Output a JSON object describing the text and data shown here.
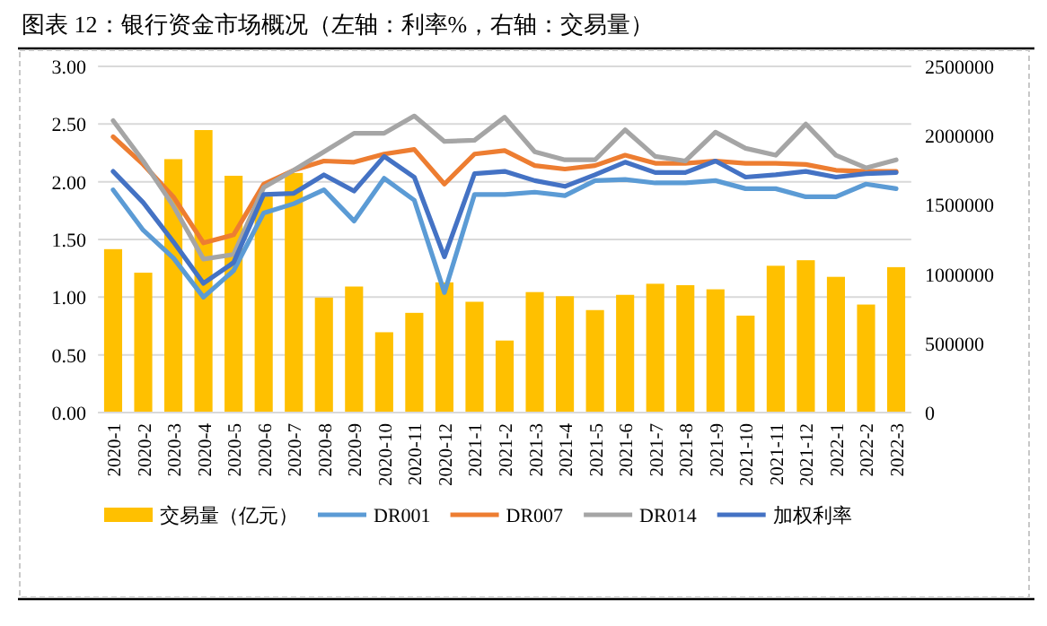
{
  "chart_data": {
    "type": "line",
    "title": "图表 12：银行资金市场概况（左轴：利率%，右轴：交易量）",
    "categories": [
      "2020-1",
      "2020-2",
      "2020-3",
      "2020-4",
      "2020-5",
      "2020-6",
      "2020-7",
      "2020-8",
      "2020-9",
      "2020-10",
      "2020-11",
      "2020-12",
      "2021-1",
      "2021-2",
      "2021-3",
      "2021-4",
      "2021-5",
      "2021-6",
      "2021-7",
      "2021-8",
      "2021-9",
      "2021-10",
      "2021-11",
      "2021-12",
      "2022-1",
      "2022-2",
      "2022-3"
    ],
    "series": [
      {
        "name": "交易量（亿元）",
        "type": "bar",
        "axis": "y2",
        "color": "#ffc000",
        "values": [
          1180000,
          1010000,
          1830000,
          2040000,
          1710000,
          1560000,
          1730000,
          830000,
          910000,
          580000,
          720000,
          940000,
          800000,
          520000,
          870000,
          840000,
          740000,
          850000,
          930000,
          920000,
          890000,
          700000,
          1060000,
          1100000,
          980000,
          780000,
          1050000
        ]
      },
      {
        "name": "DR001",
        "color": "#5b9bd5",
        "values": [
          1.93,
          1.58,
          1.34,
          1.0,
          1.23,
          1.73,
          1.81,
          1.93,
          1.66,
          2.03,
          1.84,
          1.04,
          1.89,
          1.89,
          1.91,
          1.88,
          2.01,
          2.02,
          1.99,
          1.99,
          2.01,
          1.94,
          1.94,
          1.87,
          1.87,
          1.98,
          1.94
        ]
      },
      {
        "name": "DR007",
        "color": "#ed7d31",
        "values": [
          2.39,
          2.15,
          1.87,
          1.47,
          1.54,
          1.98,
          2.1,
          2.18,
          2.17,
          2.24,
          2.28,
          1.98,
          2.24,
          2.27,
          2.14,
          2.11,
          2.14,
          2.23,
          2.16,
          2.16,
          2.18,
          2.16,
          2.16,
          2.15,
          2.1,
          2.09,
          2.09
        ]
      },
      {
        "name": "DR014",
        "color": "#a5a5a5",
        "values": [
          2.53,
          2.18,
          1.79,
          1.33,
          1.37,
          1.95,
          2.1,
          2.26,
          2.42,
          2.42,
          2.57,
          2.35,
          2.36,
          2.56,
          2.26,
          2.19,
          2.19,
          2.45,
          2.22,
          2.18,
          2.43,
          2.29,
          2.23,
          2.5,
          2.23,
          2.12,
          2.19
        ]
      },
      {
        "name": "加权利率",
        "color": "#4472c4",
        "values": [
          2.09,
          1.82,
          1.48,
          1.12,
          1.3,
          1.89,
          1.9,
          2.06,
          1.92,
          2.22,
          2.04,
          1.35,
          2.07,
          2.09,
          2.01,
          1.96,
          2.06,
          2.17,
          2.08,
          2.08,
          2.18,
          2.04,
          2.06,
          2.09,
          2.04,
          2.07,
          2.08
        ]
      }
    ],
    "ylim": [
      0,
      3
    ],
    "yticks": [
      {
        "value": 0,
        "label": "0.00"
      },
      {
        "value": 0.5,
        "label": "0.50"
      },
      {
        "value": 1,
        "label": "1.00"
      },
      {
        "value": 1.5,
        "label": "1.50"
      },
      {
        "value": 2,
        "label": "2.00"
      },
      {
        "value": 2.5,
        "label": "2.50"
      },
      {
        "value": 3,
        "label": "3.00"
      }
    ],
    "y2lim": [
      0,
      2500000
    ],
    "y2ticks": [
      0,
      500000,
      1000000,
      1500000,
      2000000,
      2500000
    ],
    "grid": "y",
    "legend": "bottom"
  }
}
